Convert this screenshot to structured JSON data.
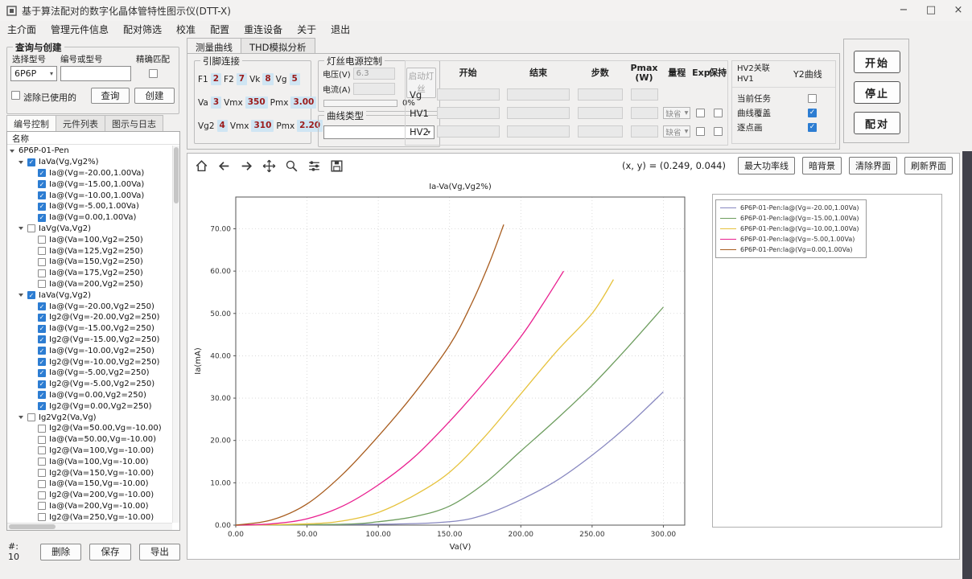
{
  "window": {
    "title": "基于算法配对的数字化晶体管特性图示仪(DTT-X)",
    "minimize": "−",
    "maximize": "□",
    "close": "×"
  },
  "menu": {
    "items": [
      "主介面",
      "管理元件信息",
      "配对筛选",
      "校准",
      "配置",
      "重连设备",
      "关于",
      "退出"
    ]
  },
  "colors": {
    "checkbox_checked": "#2d7dd2",
    "edge_strip": "#41414a",
    "pin_value_bg": "#cfe5f3",
    "pin_value_text": "#9b1a1a"
  },
  "left_panel": {
    "query": {
      "title": "查询与创建",
      "model_label": "选择型号",
      "serial_label": "编号或型号",
      "exact_label": "精确匹配",
      "model_value": "6P6P",
      "serial_value": "",
      "filter_label": "滤除已使用的",
      "filter_checked": false,
      "exact_checked": false,
      "query_btn": "查询",
      "create_btn": "创建"
    },
    "tabs": [
      {
        "label": "编号控制",
        "active": true
      },
      {
        "label": "元件列表",
        "active": false
      },
      {
        "label": "图示与日志",
        "active": false
      }
    ],
    "tree": {
      "header": "名称",
      "root": "6P6P-01-Pen",
      "groups": [
        {
          "label": "IaVa(Vg,Vg2%)",
          "checked": true,
          "children": [
            {
              "label": "Ia@(Vg=-20.00,1.00Va)",
              "checked": true
            },
            {
              "label": "Ia@(Vg=-15.00,1.00Va)",
              "checked": true
            },
            {
              "label": "Ia@(Vg=-10.00,1.00Va)",
              "checked": true
            },
            {
              "label": "Ia@(Vg=-5.00,1.00Va)",
              "checked": true
            },
            {
              "label": "Ia@(Vg=0.00,1.00Va)",
              "checked": true
            }
          ]
        },
        {
          "label": "IaVg(Va,Vg2)",
          "checked": false,
          "children": [
            {
              "label": "Ia@(Va=100,Vg2=250)",
              "checked": false
            },
            {
              "label": "Ia@(Va=125,Vg2=250)",
              "checked": false
            },
            {
              "label": "Ia@(Va=150,Vg2=250)",
              "checked": false
            },
            {
              "label": "Ia@(Va=175,Vg2=250)",
              "checked": false
            },
            {
              "label": "Ia@(Va=200,Vg2=250)",
              "checked": false
            }
          ]
        },
        {
          "label": "IaVa(Vg,Vg2)",
          "checked": true,
          "children": [
            {
              "label": "Ia@(Vg=-20.00,Vg2=250)",
              "checked": true
            },
            {
              "label": "Ig2@(Vg=-20.00,Vg2=250)",
              "checked": true
            },
            {
              "label": "Ia@(Vg=-15.00,Vg2=250)",
              "checked": true
            },
            {
              "label": "Ig2@(Vg=-15.00,Vg2=250)",
              "checked": true
            },
            {
              "label": "Ia@(Vg=-10.00,Vg2=250)",
              "checked": true
            },
            {
              "label": "Ig2@(Vg=-10.00,Vg2=250)",
              "checked": true
            },
            {
              "label": "Ia@(Vg=-5.00,Vg2=250)",
              "checked": true
            },
            {
              "label": "Ig2@(Vg=-5.00,Vg2=250)",
              "checked": true
            },
            {
              "label": "Ia@(Vg=0.00,Vg2=250)",
              "checked": true
            },
            {
              "label": "Ig2@(Vg=0.00,Vg2=250)",
              "checked": true
            }
          ]
        },
        {
          "label": "Ig2Vg2(Va,Vg)",
          "checked": false,
          "children": [
            {
              "label": "Ig2@(Va=50.00,Vg=-10.00)",
              "checked": false
            },
            {
              "label": "Ia@(Va=50.00,Vg=-10.00)",
              "checked": false
            },
            {
              "label": "Ig2@(Va=100,Vg=-10.00)",
              "checked": false
            },
            {
              "label": "Ia@(Va=100,Vg=-10.00)",
              "checked": false
            },
            {
              "label": "Ig2@(Va=150,Vg=-10.00)",
              "checked": false
            },
            {
              "label": "Ia@(Va=150,Vg=-10.00)",
              "checked": false
            },
            {
              "label": "Ig2@(Va=200,Vg=-10.00)",
              "checked": false
            },
            {
              "label": "Ia@(Va=200,Vg=-10.00)",
              "checked": false
            },
            {
              "label": "Ig2@(Va=250,Vg=-10.00)",
              "checked": false
            }
          ]
        }
      ]
    },
    "footer": {
      "count": "#: 10",
      "buttons": [
        "删除",
        "保存",
        "导出"
      ]
    }
  },
  "main": {
    "tabs": [
      {
        "label": "测量曲线",
        "active": true
      },
      {
        "label": "THD模拟分析",
        "active": false
      }
    ],
    "pin_group": {
      "title": "引脚连接",
      "rows": [
        [
          {
            "l": "F1",
            "v": "2"
          },
          {
            "l": "F2",
            "v": "7"
          },
          {
            "l": "Vk",
            "v": "8"
          },
          {
            "l": "Vg",
            "v": "5"
          }
        ],
        [
          {
            "l": "Va",
            "v": "3"
          },
          {
            "l": "Vmx",
            "v": "350"
          },
          {
            "l": "Pmx",
            "v": "3.00"
          }
        ],
        [
          {
            "l": "Vg2",
            "v": "4"
          },
          {
            "l": "Vmx",
            "v": "310"
          },
          {
            "l": "Pmx",
            "v": "2.20"
          }
        ]
      ]
    },
    "filament_group": {
      "title": "灯丝电源控制",
      "voltage_label": "电压(V)",
      "voltage_value": "6.3",
      "current_label": "电流(A)",
      "current_value": "",
      "start_button": "启动灯丝",
      "progress": "0%"
    },
    "curve_type_group": {
      "title": "曲线类型",
      "selected": ""
    },
    "sweep_table": {
      "headers": [
        "开始",
        "结束",
        "步数",
        "Pmax (W)",
        "量程",
        "Exp",
        "保持"
      ],
      "rows": [
        {
          "label": "Vg",
          "range_select": null,
          "exp": null,
          "hold": null
        },
        {
          "label": "HV1",
          "range_select": "缺省",
          "exp": false,
          "hold": false
        },
        {
          "label": "HV2",
          "range_select": "缺省",
          "exp": false,
          "hold": false
        }
      ]
    },
    "options_group": {
      "hv2_link_line1": "HV2关联",
      "hv2_link_line2": "HV1",
      "y2_label": "Y2曲线",
      "options": [
        {
          "label": "当前任务",
          "checked": false
        },
        {
          "label": "曲线覆盖",
          "checked": true
        },
        {
          "label": "逐点画",
          "checked": true
        }
      ]
    },
    "action_buttons": [
      "开始",
      "停止",
      "配对"
    ],
    "toolbar": {
      "icons": [
        "home-icon",
        "back-icon",
        "forward-icon",
        "pan-icon",
        "zoom-icon",
        "sliders-icon",
        "save-icon"
      ],
      "coords": "(x, y) = (0.249, 0.044)",
      "buttons": [
        "最大功率线",
        "暗背景",
        "清除界面",
        "刷新界面"
      ]
    }
  },
  "chart_data": {
    "type": "line",
    "title": "Ia-Va(Vg,Vg2%)",
    "xlabel": "Va(V)",
    "ylabel": "Ia(mA)",
    "xlim": [
      0,
      315
    ],
    "ylim": [
      0,
      77.5
    ],
    "xticks": [
      0,
      50,
      100,
      150,
      200,
      250,
      300
    ],
    "yticks": [
      0,
      10,
      20,
      30,
      40,
      50,
      60,
      70
    ],
    "grid": true,
    "legend_position": "upper-right-panel",
    "series": [
      {
        "name": "6P6P-01-Pen:Ia@(Vg=-20.00,1.00Va)",
        "color": "#8888c0",
        "points": [
          [
            0,
            0
          ],
          [
            100,
            0.2
          ],
          [
            150,
            0.8
          ],
          [
            175,
            2.5
          ],
          [
            200,
            6
          ],
          [
            225,
            10.5
          ],
          [
            250,
            16.5
          ],
          [
            275,
            23.5
          ],
          [
            300,
            31.5
          ]
        ]
      },
      {
        "name": "6P6P-01-Pen:Ia@(Vg=-15.00,1.00Va)",
        "color": "#6d9d5e",
        "points": [
          [
            0,
            0
          ],
          [
            75,
            0.2
          ],
          [
            100,
            0.8
          ],
          [
            125,
            2
          ],
          [
            150,
            4.5
          ],
          [
            175,
            10
          ],
          [
            200,
            17.5
          ],
          [
            225,
            25
          ],
          [
            250,
            33
          ],
          [
            275,
            42
          ],
          [
            300,
            51.5
          ]
        ]
      },
      {
        "name": "6P6P-01-Pen:Ia@(Vg=-10.00,1.00Va)",
        "color": "#e6c23c",
        "points": [
          [
            0,
            0
          ],
          [
            50,
            0.3
          ],
          [
            75,
            1
          ],
          [
            100,
            3
          ],
          [
            125,
            7
          ],
          [
            150,
            12.5
          ],
          [
            175,
            21
          ],
          [
            200,
            31
          ],
          [
            225,
            41
          ],
          [
            250,
            50
          ],
          [
            265,
            58
          ]
        ]
      },
      {
        "name": "6P6P-01-Pen:Ia@(Vg=-5.00,1.00Va)",
        "color": "#e91f8f",
        "points": [
          [
            0,
            0
          ],
          [
            25,
            0.3
          ],
          [
            50,
            1.5
          ],
          [
            75,
            4.5
          ],
          [
            100,
            9.5
          ],
          [
            125,
            16
          ],
          [
            150,
            24.5
          ],
          [
            175,
            34
          ],
          [
            200,
            44.5
          ],
          [
            215,
            52
          ],
          [
            230,
            60
          ]
        ]
      },
      {
        "name": "6P6P-01-Pen:Ia@(Vg=0.00,1.00Va)",
        "color": "#a85c1e",
        "points": [
          [
            0,
            0
          ],
          [
            25,
            1.2
          ],
          [
            50,
            5
          ],
          [
            75,
            12
          ],
          [
            100,
            21
          ],
          [
            125,
            31
          ],
          [
            150,
            42.5
          ],
          [
            165,
            52
          ],
          [
            178,
            62
          ],
          [
            188,
            71
          ]
        ]
      }
    ]
  }
}
